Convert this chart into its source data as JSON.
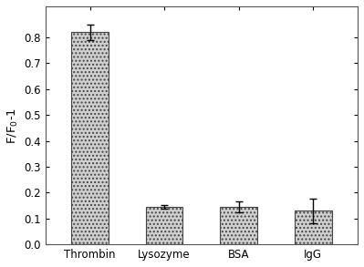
{
  "categories": [
    "Thrombin",
    "Lysozyme",
    "BSA",
    "IgG"
  ],
  "values": [
    0.82,
    0.145,
    0.145,
    0.13
  ],
  "errors": [
    0.03,
    0.008,
    0.022,
    0.048
  ],
  "bar_color": "#d0d0d0",
  "bar_edgecolor": "#444444",
  "ylabel": "F/F$_0$-1",
  "ylim": [
    0.0,
    0.92
  ],
  "yticks": [
    0.0,
    0.1,
    0.2,
    0.3,
    0.4,
    0.5,
    0.6,
    0.7,
    0.8
  ],
  "bar_width": 0.5,
  "background_color": "#ffffff",
  "hatch": "....",
  "spine_color": "#555555",
  "tick_fontsize": 8.5,
  "ylabel_fontsize": 9.5
}
